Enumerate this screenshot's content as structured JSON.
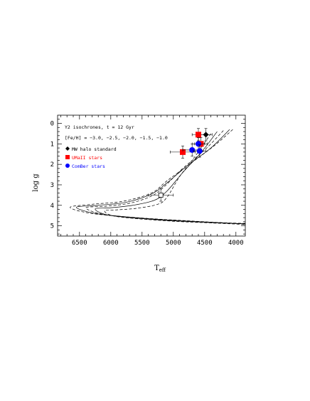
{
  "chart_data": {
    "type": "scatter",
    "title": "",
    "xlabel": "T",
    "xlabel_sub": "eff",
    "ylabel": "log g",
    "xlim": [
      6850,
      3850
    ],
    "ylim": [
      -0.4,
      5.5
    ],
    "x_ticks": [
      6500,
      6000,
      5500,
      5000,
      4500,
      4000
    ],
    "x_tick_labels": [
      "6500",
      "6000",
      "5500",
      "5000",
      "4500",
      "4000"
    ],
    "y_ticks": [
      0,
      1,
      2,
      3,
      4,
      5
    ],
    "y_tick_labels": [
      "0",
      "1",
      "2",
      "3",
      "4",
      "5"
    ],
    "annotations": [
      "Y2 isochrones, t = 12 Gyr",
      "[Fe/H] = −3.0, −2.5, −2.0, −1.5, −1.0"
    ],
    "legend": [
      {
        "label": "MW halo standard",
        "marker": "diamond",
        "color": "#000000"
      },
      {
        "label": "UMaII stars",
        "marker": "square",
        "color": "#ff0000"
      },
      {
        "label": "ComBer stars",
        "marker": "circle",
        "color": "#0000ff"
      }
    ],
    "legend_position": "top-left",
    "isochrones": [
      {
        "feh": "-3.0",
        "style": "dashed",
        "points": [
          [
            4050,
            0.3
          ],
          [
            4350,
            1.1
          ],
          [
            4700,
            1.9
          ],
          [
            5100,
            2.8
          ],
          [
            5350,
            3.4
          ],
          [
            5800,
            3.8
          ],
          [
            6300,
            3.95
          ],
          [
            6650,
            4.1
          ],
          [
            6300,
            4.4
          ],
          [
            5500,
            4.62
          ],
          [
            4800,
            4.75
          ],
          [
            4200,
            4.85
          ],
          [
            3850,
            4.88
          ]
        ]
      },
      {
        "feh": "-2.5",
        "style": "solid",
        "points": [
          [
            4100,
            0.3
          ],
          [
            4400,
            1.2
          ],
          [
            4750,
            2.0
          ],
          [
            5100,
            2.9
          ],
          [
            5350,
            3.45
          ],
          [
            5750,
            3.85
          ],
          [
            6200,
            4.0
          ],
          [
            6550,
            4.1
          ],
          [
            6200,
            4.42
          ],
          [
            5400,
            4.65
          ],
          [
            4700,
            4.78
          ],
          [
            4100,
            4.87
          ],
          [
            3850,
            4.9
          ]
        ]
      },
      {
        "feh": "-2.0",
        "style": "dashed",
        "points": [
          [
            4200,
            0.35
          ],
          [
            4500,
            1.3
          ],
          [
            4850,
            2.2
          ],
          [
            5150,
            3.1
          ],
          [
            5350,
            3.55
          ],
          [
            5700,
            3.9
          ],
          [
            6100,
            4.05
          ],
          [
            6400,
            4.12
          ],
          [
            6100,
            4.45
          ],
          [
            5300,
            4.68
          ],
          [
            4600,
            4.8
          ],
          [
            4000,
            4.88
          ],
          [
            3850,
            4.92
          ]
        ]
      },
      {
        "feh": "-1.5",
        "style": "solid",
        "points": [
          [
            4300,
            0.4
          ],
          [
            4550,
            1.4
          ],
          [
            4850,
            2.4
          ],
          [
            5100,
            3.3
          ],
          [
            5300,
            3.75
          ],
          [
            5650,
            4.0
          ],
          [
            6000,
            4.12
          ],
          [
            6250,
            4.18
          ],
          [
            6000,
            4.5
          ],
          [
            5200,
            4.72
          ],
          [
            4500,
            4.83
          ],
          [
            3950,
            4.9
          ],
          [
            3850,
            4.93
          ]
        ]
      },
      {
        "feh": "-1.0",
        "style": "dashed",
        "points": [
          [
            4400,
            0.5
          ],
          [
            4650,
            1.6
          ],
          [
            4900,
            2.6
          ],
          [
            5100,
            3.6
          ],
          [
            5250,
            3.95
          ],
          [
            5600,
            4.15
          ],
          [
            5900,
            4.22
          ],
          [
            6100,
            4.27
          ],
          [
            5900,
            4.55
          ],
          [
            5100,
            4.76
          ],
          [
            4400,
            4.86
          ],
          [
            3900,
            4.93
          ],
          [
            3850,
            4.95
          ]
        ]
      }
    ],
    "series": [
      {
        "name": "MW halo standard",
        "marker": "diamond",
        "color": "#000000",
        "points": [
          {
            "x": 4480,
            "y": 0.55,
            "xerr": 100,
            "yerr": 0.3
          }
        ]
      },
      {
        "name": "UMaII stars",
        "marker": "square",
        "color": "#ff0000",
        "points": [
          {
            "x": 4600,
            "y": 0.55,
            "xerr": 100,
            "yerr": 0.3
          },
          {
            "x": 4560,
            "y": 1.0,
            "xerr": 100,
            "yerr": 0.3
          },
          {
            "x": 4850,
            "y": 1.4,
            "xerr": 200,
            "yerr": 0.3
          }
        ]
      },
      {
        "name": "ComBer stars",
        "marker": "circle",
        "color": "#0000ff",
        "points": [
          {
            "x": 4600,
            "y": 1.0,
            "xerr": 100,
            "yerr": 0.3
          },
          {
            "x": 4700,
            "y": 1.3,
            "xerr": 150,
            "yerr": 0.3
          },
          {
            "x": 4580,
            "y": 1.35,
            "xerr": 100,
            "yerr": 0.3
          }
        ]
      },
      {
        "name": "",
        "marker": "open-square",
        "color": "#000000",
        "points": [
          {
            "x": 5200,
            "y": 3.5,
            "xerr": 200,
            "yerr": 0.3
          }
        ]
      }
    ]
  }
}
